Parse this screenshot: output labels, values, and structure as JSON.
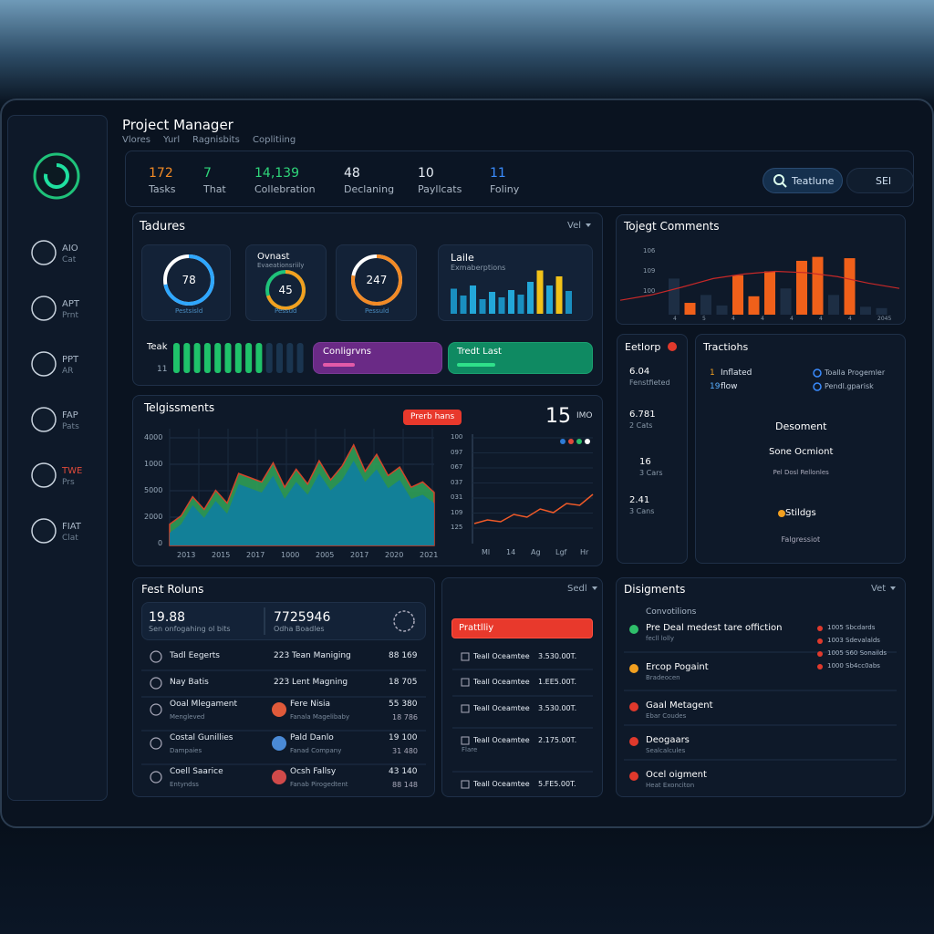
{
  "header": {
    "title": "Project Manager",
    "breadcrumb": [
      "Vlores",
      "Yurl",
      "Ragnisbits",
      "Coplitiing"
    ]
  },
  "sidebar": [
    {
      "code": "AIO",
      "label": "Cat"
    },
    {
      "code": "APT",
      "label": "Prnt"
    },
    {
      "code": "PPT",
      "label": "AR"
    },
    {
      "code": "FAP",
      "label": "Pats"
    },
    {
      "code": "TWE",
      "label": "Prs"
    },
    {
      "code": "FIAT",
      "label": "Clat"
    }
  ],
  "stats": [
    {
      "value": "172",
      "label": "Tasks"
    },
    {
      "value": "7",
      "label": "That"
    },
    {
      "value": "14,139",
      "label": "Collebration"
    },
    {
      "value": "48",
      "label": "Declaning"
    },
    {
      "value": "10",
      "label": "Payllcats"
    },
    {
      "value": "11",
      "label": "Foliny"
    }
  ],
  "search": "Teatlune",
  "selector": "SEI",
  "tadures": {
    "title": "Tadures",
    "filter": "Vel",
    "rings": [
      {
        "value": "78",
        "caption": "Pestsisld"
      },
      {
        "title": "Ovnast",
        "subtitle": "Evaeationsriily",
        "value": "45",
        "caption": "Pessud"
      },
      {
        "value": "247",
        "caption": "Pessuld"
      }
    ],
    "bars": {
      "title": "Laile",
      "subtitle": "Exmaberptions",
      "ylim": [
        0,
        100
      ],
      "values": [
        55,
        40,
        62,
        32,
        48,
        36,
        52,
        42,
        70,
        95,
        62,
        82,
        50
      ],
      "colors": [
        "#1a8fc0",
        "#1a8fc0",
        "#23a7d8",
        "#1a8fc0",
        "#23a7d8",
        "#1a8fc0",
        "#23a7d8",
        "#1a8fc0",
        "#23a7d8",
        "#f2c218",
        "#23a7d8",
        "#f2c218",
        "#1a8fc0"
      ]
    },
    "progress": {
      "label": "Teak",
      "count": "11"
    },
    "chips": [
      "Conligrvns",
      "Tredt Last"
    ]
  },
  "comments": {
    "title": "Tojegt Comments",
    "y_labels": [
      "106",
      "109",
      "100"
    ],
    "x_labels": [
      "4",
      "5",
      "4",
      "4",
      "4",
      "4",
      "4",
      "2045"
    ],
    "ylim": [
      0,
      100
    ],
    "values": [
      55,
      18,
      30,
      14,
      60,
      28,
      66,
      40,
      82,
      88,
      30,
      86,
      12,
      10
    ],
    "colors": [
      "#1d2e44",
      "#f0601a",
      "#1d2e44",
      "#1d2e44",
      "#f0601a",
      "#f0601a",
      "#f0601a",
      "#1d2e44",
      "#f0601a",
      "#f0601a",
      "#1d2e44",
      "#f0601a",
      "#1d2e44",
      "#1d2e44"
    ],
    "trend": [
      22,
      30,
      42,
      55,
      62,
      66,
      64,
      58,
      48,
      40
    ]
  },
  "telg": {
    "title": "Telgissments",
    "tag": "Prerb hans",
    "big": "15",
    "big_unit": "IMO",
    "area": {
      "y_labels": [
        "4000",
        "1000",
        "5000",
        "2000",
        "0"
      ],
      "x_labels": [
        "2013",
        "2015",
        "2017",
        "1000",
        "2005",
        "2017",
        "2020",
        "2021"
      ],
      "ylim": [
        0,
        100
      ],
      "series": [
        {
          "color": "#2f9e57",
          "values": [
            20,
            28,
            46,
            34,
            52,
            40,
            68,
            64,
            60,
            78,
            55,
            72,
            58,
            80,
            62,
            75,
            95,
            70,
            86,
            66,
            74,
            55,
            60,
            50
          ]
        },
        {
          "color": "#0f7ea0",
          "values": [
            12,
            20,
            38,
            26,
            42,
            30,
            58,
            54,
            50,
            66,
            44,
            60,
            48,
            68,
            52,
            62,
            80,
            60,
            72,
            54,
            62,
            44,
            48,
            40
          ]
        }
      ]
    },
    "line": {
      "y_labels": [
        "100",
        "097",
        "067",
        "037",
        "031",
        "109",
        "125"
      ],
      "x_labels": [
        "Ml",
        "14",
        "Ag",
        "Lgf",
        "Hr"
      ],
      "ylim": [
        0,
        100
      ],
      "color": "#f05a28",
      "values": [
        18,
        22,
        20,
        28,
        25,
        34,
        30,
        40,
        38,
        50
      ]
    }
  },
  "eetlorp": {
    "title": "Eetlorp",
    "items": [
      {
        "value": "6.04",
        "label": "Fenstfieted"
      },
      {
        "value": "6.781",
        "label": "2 Cats"
      },
      {
        "value": "16",
        "label": "3 Cars"
      },
      {
        "value": "2.41",
        "label": "3 Cans"
      }
    ]
  },
  "tractlons": {
    "title": "Tractiohs",
    "left": [
      {
        "num": "1",
        "text": "Inflated"
      },
      {
        "num": "19",
        "text": "flow"
      }
    ],
    "right": [
      "Toalla Progemler",
      "Pendl.gparisk"
    ],
    "heading": "Desoment",
    "sub": "Sone Ocmiont",
    "note": "Pel Dosl Rellonles",
    "action": "Stildgs",
    "footer": "Falgressiot"
  },
  "fest": {
    "title": "Fest Roluns",
    "kpi": [
      {
        "value": "19.88",
        "label": "Sen onfogahing ol bits"
      },
      {
        "value": "7725946",
        "label": "Odha Boadles"
      }
    ],
    "rows": [
      {
        "name": "Tadl Eegerts",
        "person": "223 Tean Maniging",
        "value": "88 169"
      },
      {
        "name": "Nay Batis",
        "person": "223 Lent Magning",
        "value": "18 705"
      },
      {
        "name": "Ooal Mlegament",
        "sub": "Mengleved",
        "person": "Fere Nisia",
        "person_sub": "Fanala Magelibaby",
        "value": "55 380",
        "value2": "18 786"
      },
      {
        "name": "Costal Gunillies",
        "sub": "Dampaies",
        "person": "Pald Danlo",
        "person_sub": "Fanad Company",
        "value": "19 100",
        "value2": "31 480"
      },
      {
        "name": "Coell Saarice",
        "sub": "Entyndss",
        "person": "Ocsh Fallsy",
        "person_sub": "Fanab Pirogedtent",
        "value": "43 140",
        "value2": "88 148"
      }
    ]
  },
  "middle": {
    "filter": "Sedl",
    "dropdown": "Prattlliy",
    "rows": [
      {
        "text": "Teall Oceamtee",
        "amount": "3.530.00T."
      },
      {
        "text": "Teall Oceamtee",
        "amount": "1.EE5.00T."
      },
      {
        "text": "Teall Oceamtee",
        "amount": "3.530.00T."
      },
      {
        "text": "Teall Oceamtee",
        "amount": "2.175.00T.",
        "sub": "Flare"
      },
      {
        "text": "Teall Oceamtee",
        "amount": "5.FE5.00T."
      }
    ]
  },
  "disig": {
    "title": "Disigments",
    "filter": "Vet",
    "heading": "Convotilions",
    "items": [
      {
        "title": "Pre Deal medest tare offiction",
        "sub": "fecll lolly"
      },
      {
        "title": "Ercop Pogaint",
        "sub": "Bradeocen"
      },
      {
        "title": "Gaal Metagent",
        "sub": "Ebar Coudes"
      },
      {
        "title": "Deogaars",
        "sub": "Sealcalcules"
      },
      {
        "title": "Ocel oigment",
        "sub": "Heat Exonciton"
      }
    ],
    "legend": [
      "1005 Sbcdards",
      "1003 Sdevalalds",
      "1005 S60 Sonailds",
      "1000 Sb4cc0abs"
    ]
  }
}
